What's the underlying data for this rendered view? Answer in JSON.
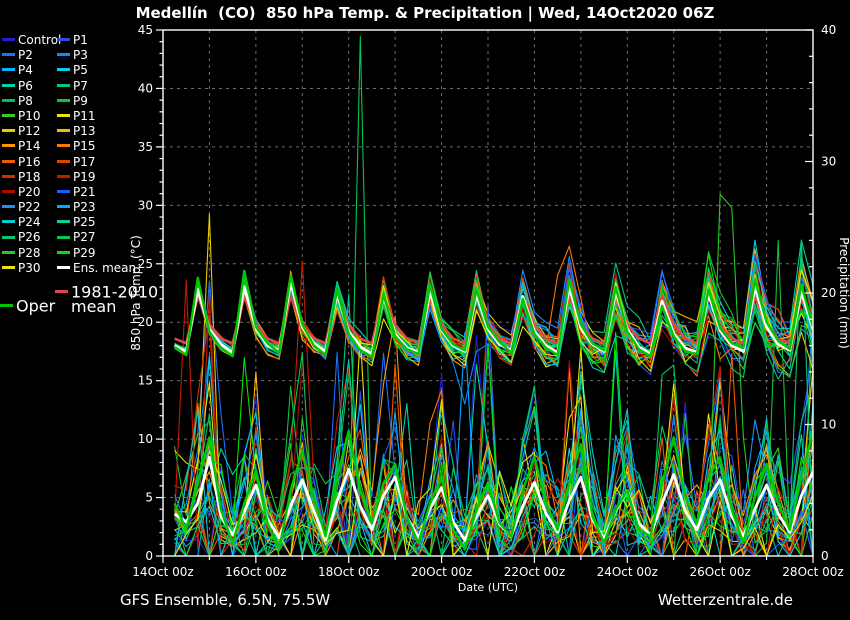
{
  "title": "Medellín  (CO)  850 hPa Temp. & Precipitation | Wed, 14Oct2020 06Z",
  "footer": {
    "left": "GFS Ensemble, 6.5N, 75.5W",
    "right": "Wetterzentrale.de"
  },
  "colors": {
    "background": "#000000",
    "text": "#ffffff",
    "grid": "#6e6e6e",
    "axis": "#ffffff",
    "ens_mean": "#ffffff",
    "clim_mean": "#e04848",
    "oper": "#00c800"
  },
  "legend": {
    "ens_mean_label": "Ens. mean",
    "clim_label_line1": "1981-2010",
    "clim_label_line2": "mean",
    "oper_label": "Oper"
  },
  "chart_data": {
    "type": "line",
    "title": "Medellín (CO) 850 hPa Temp. & Precipitation",
    "run": "Wed, 14Oct2020 06Z",
    "x_axis": {
      "label": "Date (UTC)",
      "tick_labels": [
        "14Oct 00z",
        "16Oct 00z",
        "18Oct 00z",
        "20Oct 00z",
        "22Oct 00z",
        "24Oct 00z",
        "26Oct 00z",
        "28Oct 00z"
      ],
      "days": 14
    },
    "y_left": {
      "label": "850 hPa Temp. (°C)",
      "min": 0,
      "max": 45,
      "major_step": 5,
      "minor_step": 1
    },
    "y_right": {
      "label": "Precipitation (mm)",
      "min": 0,
      "max": 40,
      "major_step": 10,
      "minor_step": 2
    },
    "time": {
      "start_hour": 6,
      "step_hours": 6,
      "count": 56
    },
    "series": {
      "ens_mean_temp": [
        18.0,
        17.5,
        22.8,
        19.4,
        18.1,
        17.4,
        23.0,
        19.5,
        18.0,
        17.6,
        23.4,
        19.6,
        18.2,
        17.5,
        22.4,
        19.2,
        17.9,
        17.3,
        22.2,
        19.0,
        17.8,
        17.4,
        22.6,
        19.3,
        18.0,
        17.5,
        22.4,
        19.4,
        18.1,
        17.6,
        22.2,
        19.2,
        18.0,
        17.4,
        23.0,
        19.5,
        18.1,
        17.5,
        22.6,
        19.4,
        17.9,
        17.3,
        21.8,
        19.0,
        17.8,
        17.4,
        22.4,
        19.3,
        18.0,
        17.5,
        23.0,
        19.6,
        18.1,
        17.6,
        22.6,
        19.4
      ],
      "oper_temp": [
        17.9,
        17.2,
        23.8,
        19.2,
        17.8,
        17.1,
        24.4,
        19.6,
        18.2,
        17.4,
        24.0,
        19.8,
        18.0,
        17.2,
        22.8,
        19.0,
        17.6,
        17.0,
        22.4,
        18.8,
        17.7,
        17.3,
        23.2,
        19.4,
        18.1,
        17.6,
        22.8,
        19.6,
        18.3,
        17.4,
        22.0,
        19.0,
        17.8,
        17.2,
        23.6,
        19.8,
        18.2,
        17.6,
        23.0,
        19.2,
        17.7,
        17.1,
        21.4,
        18.8,
        17.5,
        17.3,
        22.8,
        19.5,
        18.2,
        17.8,
        23.6,
        20.0,
        18.4,
        17.7,
        23.2,
        19.6
      ],
      "clim_cycle_temp": {
        "h0": 19.8,
        "h6": 18.6,
        "h12": 18.2,
        "h18": 22.2
      },
      "ens_mean_precip": [
        3.2,
        2.6,
        4.0,
        7.5,
        3.0,
        1.6,
        3.4,
        5.4,
        2.8,
        1.4,
        3.8,
        5.8,
        3.4,
        1.2,
        4.2,
        6.6,
        3.8,
        2.0,
        4.6,
        6.0,
        3.0,
        1.4,
        3.6,
        5.2,
        2.6,
        1.2,
        3.0,
        4.6,
        2.4,
        1.5,
        3.8,
        5.6,
        3.2,
        1.8,
        4.2,
        6.0,
        2.8,
        1.3,
        3.4,
        5.0,
        2.5,
        1.6,
        4.0,
        6.2,
        3.4,
        2.0,
        4.4,
        5.8,
        3.0,
        1.5,
        3.6,
        5.4,
        3.2,
        1.8,
        4.6,
        6.4
      ],
      "oper_precip": [
        4.0,
        2.0,
        5.5,
        9.0,
        3.5,
        1.0,
        4.0,
        6.5,
        2.5,
        0.5,
        5.0,
        8.0,
        4.5,
        1.5,
        6.0,
        9.5,
        5.0,
        2.5,
        5.5,
        7.0,
        3.0,
        1.0,
        4.0,
        6.0,
        2.0,
        0.5,
        3.5,
        5.5,
        2.5,
        1.5,
        5.0,
        7.5,
        4.0,
        2.0,
        5.5,
        8.5,
        3.0,
        1.0,
        3.5,
        5.0,
        2.0,
        1.5,
        5.5,
        9.0,
        4.5,
        2.5,
        6.0,
        7.5,
        3.5,
        1.0,
        4.5,
        7.0,
        4.0,
        2.0,
        6.0,
        9.5
      ]
    },
    "members": [
      {
        "name": "Control",
        "color": "#2222cc",
        "seed": 3
      },
      {
        "name": "P1",
        "color": "#2a4fe0",
        "seed": 20
      },
      {
        "name": "P2",
        "color": "#1e6eff",
        "seed": 37
      },
      {
        "name": "P3",
        "color": "#0090ff",
        "seed": 54
      },
      {
        "name": "P4",
        "color": "#00b4ff",
        "seed": 71
      },
      {
        "name": "P5",
        "color": "#00d2e6",
        "seed": 88
      },
      {
        "name": "P6",
        "color": "#00d2aa",
        "seed": 105
      },
      {
        "name": "P7",
        "color": "#00c882",
        "seed": 122
      },
      {
        "name": "P8",
        "color": "#00be5a",
        "seed": 139
      },
      {
        "name": "P9",
        "color": "#14c03c",
        "seed": 156
      },
      {
        "name": "P10",
        "color": "#3cc828",
        "seed": 173
      },
      {
        "name": "P11",
        "color": "#e6e600",
        "seed": 190
      },
      {
        "name": "P12",
        "color": "#e6cc00",
        "seed": 207
      },
      {
        "name": "P13",
        "color": "#ffb400",
        "seed": 224
      },
      {
        "name": "P14",
        "color": "#ff9600",
        "seed": 241
      },
      {
        "name": "P15",
        "color": "#ff7800",
        "seed": 258
      },
      {
        "name": "P16",
        "color": "#f05a00",
        "seed": 275
      },
      {
        "name": "P17",
        "color": "#e14400",
        "seed": 292
      },
      {
        "name": "P18",
        "color": "#d22d00",
        "seed": 309
      },
      {
        "name": "P19",
        "color": "#c31a00",
        "seed": 326
      },
      {
        "name": "P20",
        "color": "#aa0a0a",
        "seed": 343
      },
      {
        "name": "P21",
        "color": "#1e5aff",
        "seed": 360
      },
      {
        "name": "P22",
        "color": "#1e8cff",
        "seed": 377
      },
      {
        "name": "P23",
        "color": "#00aaff",
        "seed": 394
      },
      {
        "name": "P24",
        "color": "#00cdd2",
        "seed": 411
      },
      {
        "name": "P25",
        "color": "#00d2a0",
        "seed": 428
      },
      {
        "name": "P26",
        "color": "#00c878",
        "seed": 445
      },
      {
        "name": "P27",
        "color": "#00c850",
        "seed": 462
      },
      {
        "name": "P28",
        "color": "#28c828",
        "seed": 479
      },
      {
        "name": "P29",
        "color": "#00e400",
        "seed": 496
      },
      {
        "name": "P30",
        "color": "#e6e600",
        "seed": 513
      }
    ],
    "member_overrides": {
      "precip": [
        {
          "member": "P19",
          "points": [
            [
              6,
              3
            ],
            [
              12,
              21
            ],
            [
              18,
              0.5
            ]
          ]
        },
        {
          "member": "P13",
          "points": [
            [
              42,
              2
            ],
            [
              48,
              14
            ],
            [
              54,
              1
            ]
          ]
        },
        {
          "member": "P27",
          "points": [
            [
              96,
              0.5
            ],
            [
              102,
              39.5
            ],
            [
              108,
              0.8
            ]
          ]
        },
        {
          "member": "P23",
          "points": [
            [
              150,
              1
            ],
            [
              156,
              17
            ],
            [
              162,
              2
            ]
          ]
        },
        {
          "member": "P21",
          "points": [
            [
              162,
              0.5
            ],
            [
              168,
              19
            ],
            [
              174,
              1
            ]
          ]
        },
        {
          "member": "P29",
          "points": [
            [
              228,
              1
            ],
            [
              234,
              17
            ],
            [
              240,
              3
            ]
          ]
        },
        {
          "member": "P28",
          "points": [
            [
              282,
              1.5
            ],
            [
              288,
              27.5
            ],
            [
              294,
              26.5
            ],
            [
              300,
              9
            ],
            [
              306,
              1
            ]
          ]
        },
        {
          "member": "P9",
          "points": [
            [
              312,
              1
            ],
            [
              318,
              24
            ],
            [
              324,
              1.5
            ]
          ]
        },
        {
          "member": "P26",
          "points": [
            [
              324,
              2
            ],
            [
              330,
              24
            ],
            [
              336,
              2
            ]
          ]
        }
      ],
      "temp": [
        {
          "member": "P3",
          "points": [
            [
              150,
              16.5
            ],
            [
              156,
              13
            ],
            [
              162,
              17.5
            ]
          ]
        },
        {
          "member": "P15",
          "points": [
            [
              204,
              24
            ],
            [
              210,
              26.5
            ],
            [
              216,
              22
            ]
          ]
        }
      ]
    },
    "layout_hints": {
      "grid": "dashed, 5°C horizontal / 1 day vertical",
      "legend_position": "left"
    }
  }
}
